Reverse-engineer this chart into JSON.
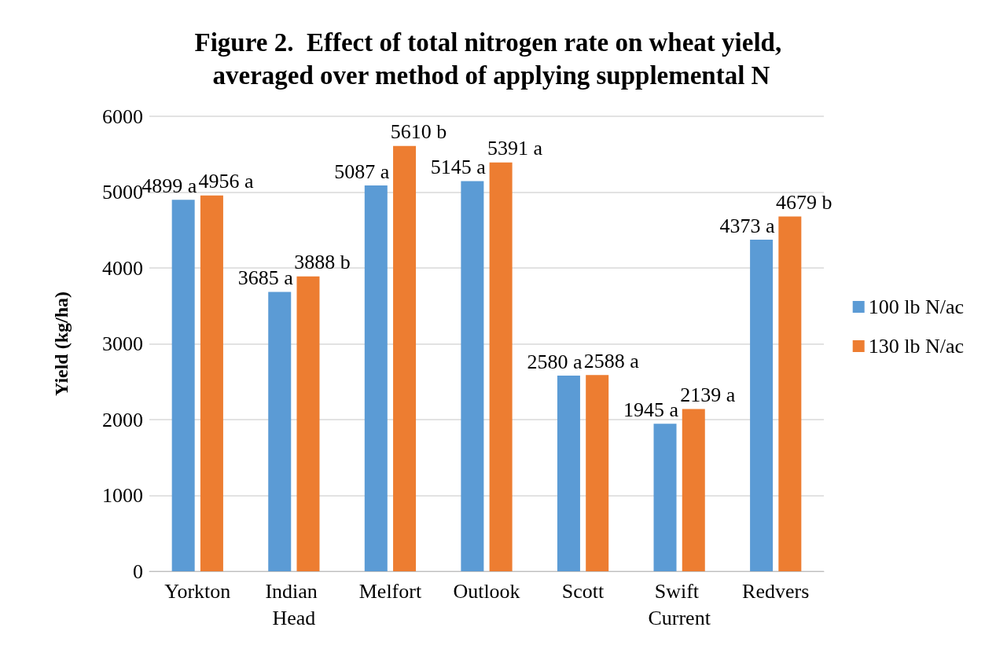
{
  "chart_data": {
    "type": "bar",
    "title": "Figure 2.  Effect of total nitrogen rate on wheat yield, averaged over method of applying supplemental N",
    "ylabel": "Yield (kg/ha)",
    "categories": [
      "Yorkton",
      "Indian Head",
      "Melfort",
      "Outlook",
      "Scott",
      "Swift Current",
      "Redvers"
    ],
    "series": [
      {
        "name": "100 lb N/ac",
        "color": "#5b9bd5",
        "values": [
          4899,
          3685,
          5087,
          5145,
          2580,
          1945,
          4373
        ],
        "value_labels": [
          "4899 a",
          "3685 a",
          "5087 a",
          "5145 a",
          "2580 a",
          "1945 a",
          "4373 a"
        ]
      },
      {
        "name": "130 lb N/ac",
        "color": "#ed7d31",
        "values": [
          4956,
          3888,
          5610,
          5391,
          2588,
          2139,
          4679
        ],
        "value_labels": [
          "4956 a",
          "3888 b",
          "5610 b",
          "5391 a",
          "2588 a",
          "2139 a",
          "4679 b"
        ]
      }
    ],
    "ylim": [
      0,
      6000
    ],
    "yticks": [
      0,
      1000,
      2000,
      3000,
      4000,
      5000,
      6000
    ],
    "grid": "y",
    "legend": "right"
  }
}
